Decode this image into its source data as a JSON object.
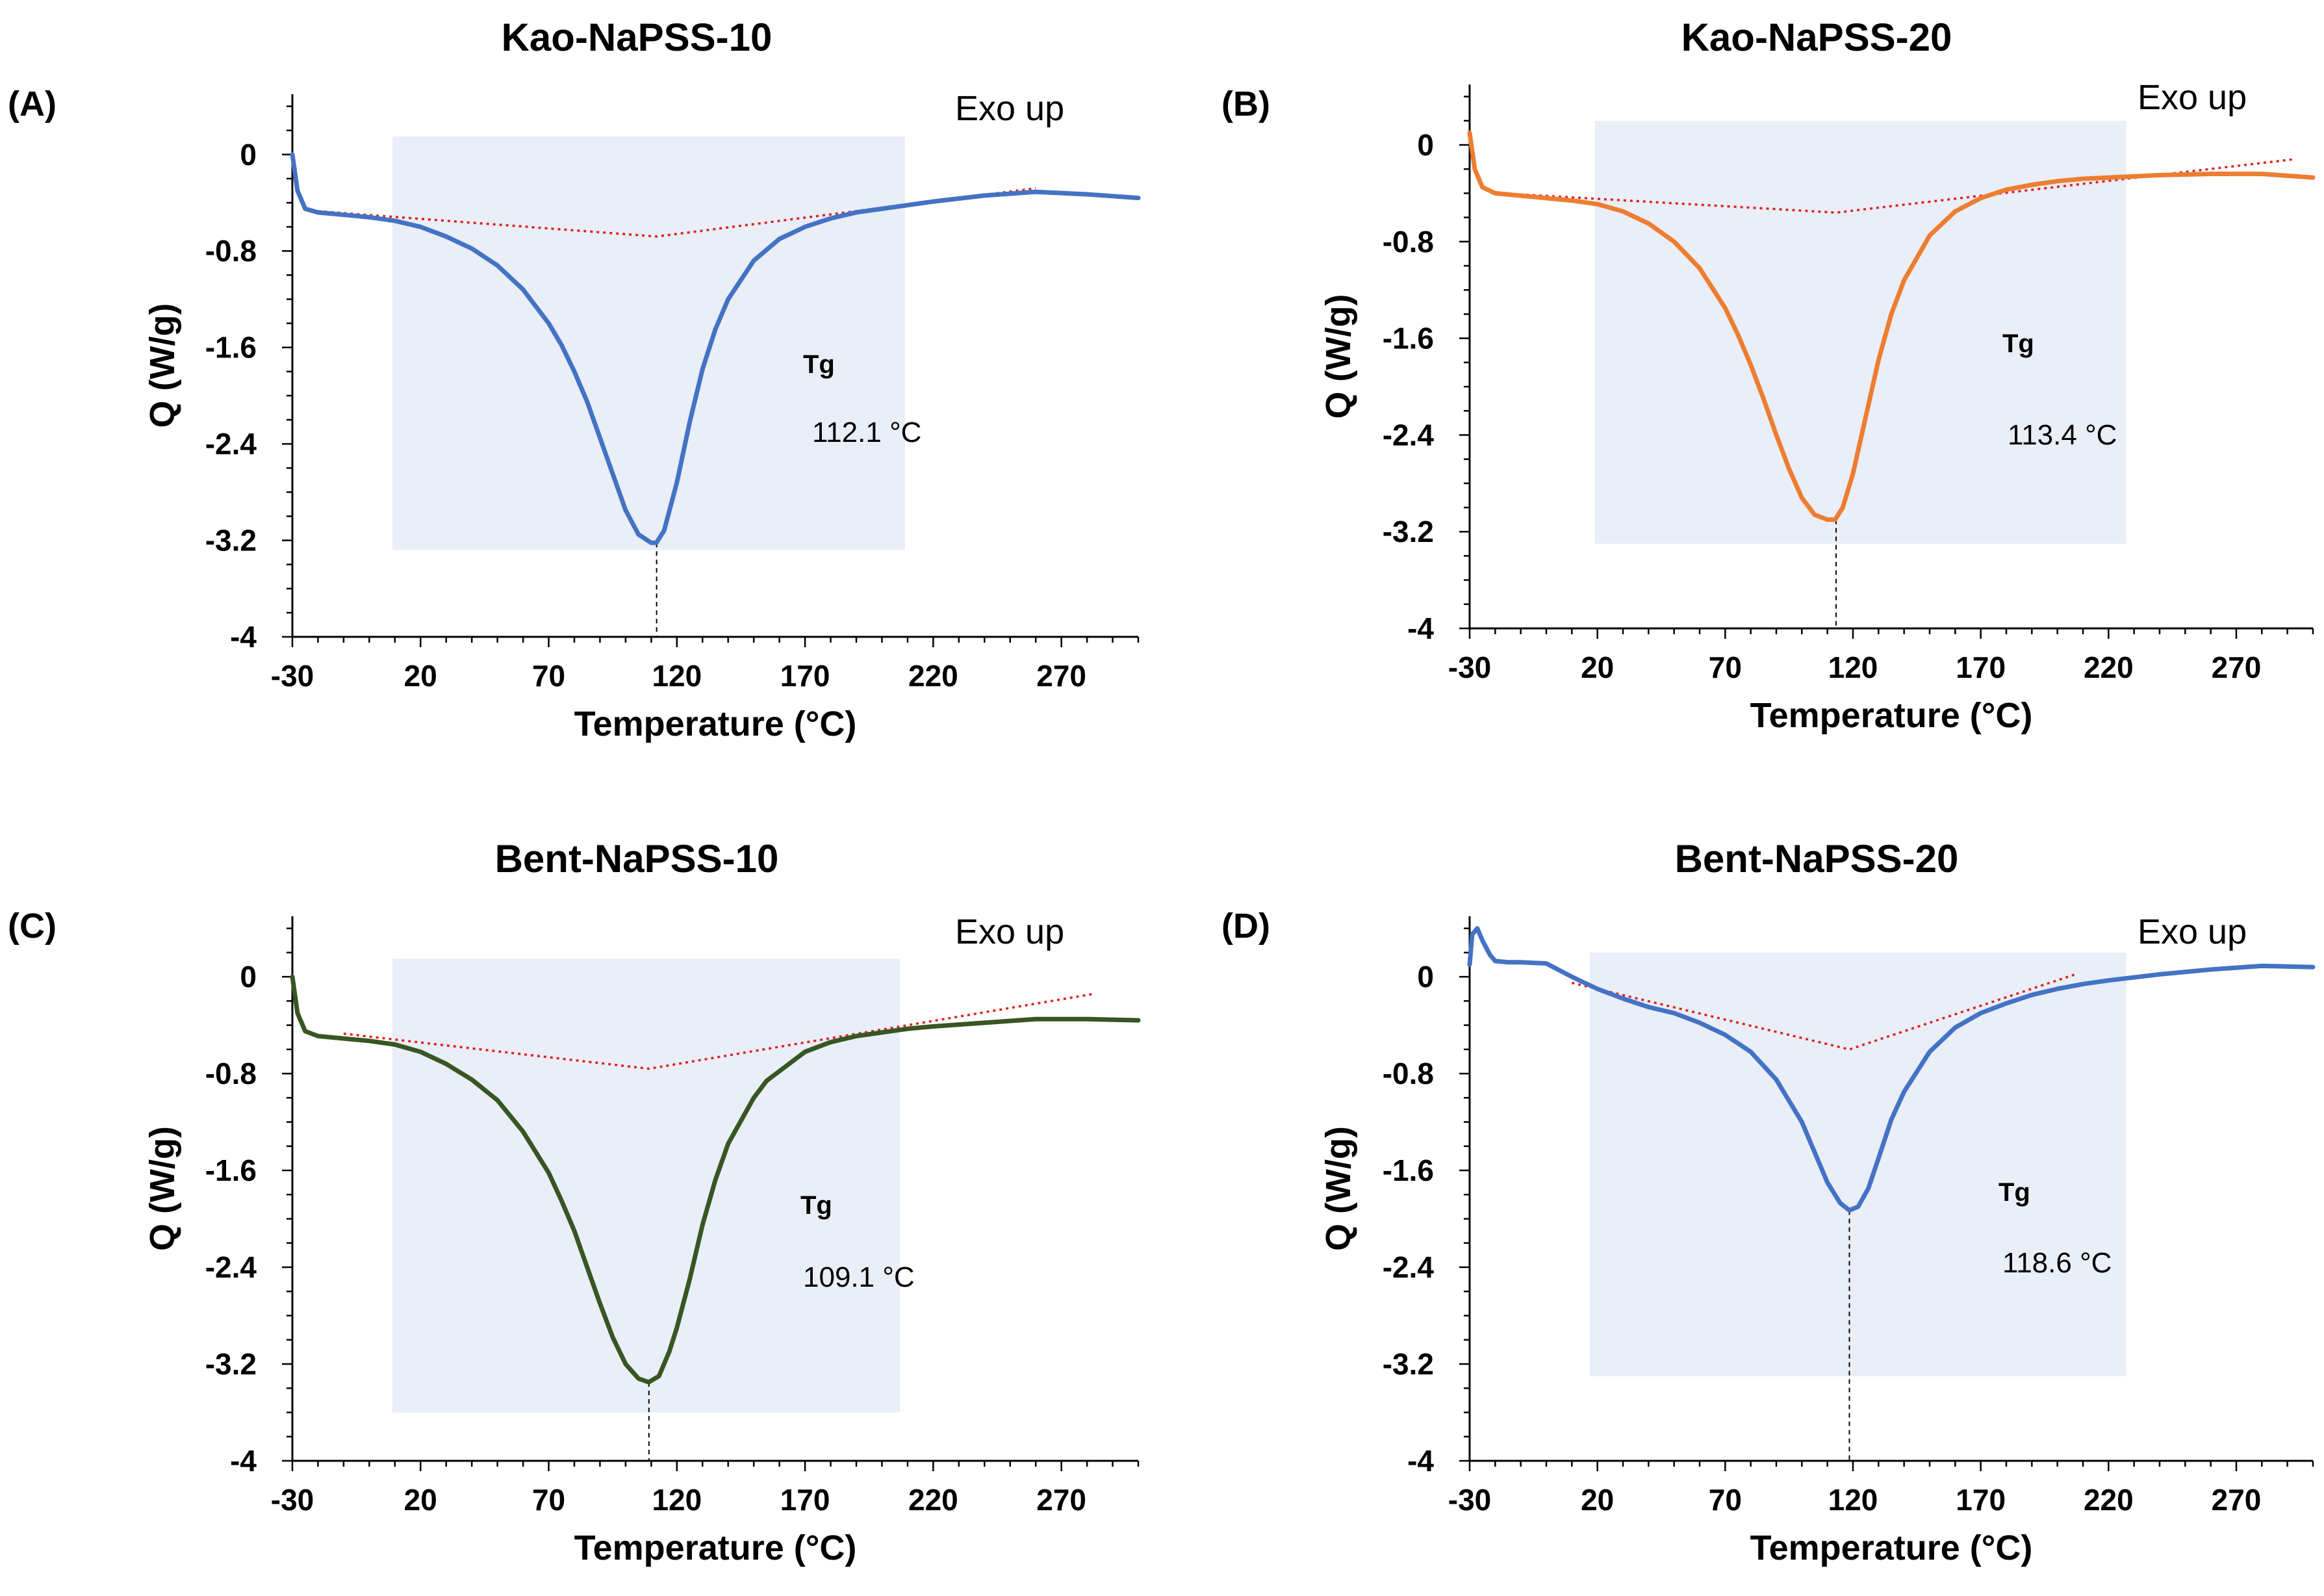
{
  "chart_data": [
    {
      "type": "line",
      "panel_label": "(A)",
      "title": "Kao-NaPSS-10",
      "xlabel": "Temperature (°C)",
      "ylabel": "Q (W/g)",
      "xlim": [
        -30,
        300
      ],
      "ylim": [
        -4,
        0.5
      ],
      "xticks": [
        "-30",
        "20",
        "70",
        "120",
        "170",
        "220",
        "270"
      ],
      "yticks": [
        "0",
        "-0.8",
        "-1.6",
        "-2.4",
        "-3.2",
        "-4"
      ],
      "annotation_exo": "Exo up",
      "tg_label": "Tg",
      "tg_value": "112.1 °C",
      "tg_x": 112.1,
      "peak_q": -3.22,
      "shade": {
        "x": [
          9,
          209
        ],
        "y": [
          -3.28,
          0.15
        ]
      },
      "baseline": {
        "x": [
          -20,
          112.1,
          260
        ],
        "y": [
          -0.47,
          -0.68,
          -0.28
        ]
      },
      "grid": false,
      "series": [
        {
          "color": "#4472C4",
          "x": [
            -30,
            -28,
            -25,
            -20,
            -10,
            0,
            10,
            20,
            30,
            40,
            50,
            60,
            70,
            75,
            80,
            85,
            90,
            95,
            100,
            105,
            110,
            112,
            115,
            120,
            125,
            130,
            135,
            140,
            150,
            160,
            170,
            180,
            190,
            200,
            210,
            220,
            240,
            260,
            280,
            300
          ],
          "y": [
            0,
            -0.3,
            -0.45,
            -0.48,
            -0.5,
            -0.52,
            -0.55,
            -0.6,
            -0.68,
            -0.78,
            -0.92,
            -1.12,
            -1.4,
            -1.58,
            -1.8,
            -2.05,
            -2.35,
            -2.65,
            -2.95,
            -3.15,
            -3.22,
            -3.22,
            -3.12,
            -2.72,
            -2.22,
            -1.78,
            -1.45,
            -1.2,
            -0.88,
            -0.7,
            -0.6,
            -0.53,
            -0.48,
            -0.45,
            -0.42,
            -0.39,
            -0.34,
            -0.31,
            -0.33,
            -0.36
          ]
        }
      ]
    },
    {
      "type": "line",
      "panel_label": "(B)",
      "title": "Kao-NaPSS-20",
      "xlabel": "Temperature (°C)",
      "ylabel": "Q (W/g)",
      "xlim": [
        -30,
        300
      ],
      "ylim": [
        -4,
        0.5
      ],
      "xticks": [
        "-30",
        "20",
        "70",
        "120",
        "170",
        "220",
        "270"
      ],
      "yticks": [
        "0",
        "-0.8",
        "-1.6",
        "-2.4",
        "-3.2",
        "-4"
      ],
      "annotation_exo": "Exo up",
      "tg_label": "Tg",
      "tg_value": "113.4 °C",
      "tg_x": 113.4,
      "peak_q": -3.1,
      "shade": {
        "x": [
          19,
          227
        ],
        "y": [
          -3.3,
          0.2
        ]
      },
      "baseline": {
        "x": [
          -18,
          113.4,
          292
        ],
        "y": [
          -0.4,
          -0.56,
          -0.12
        ]
      },
      "grid": false,
      "series": [
        {
          "color": "#ED7D31",
          "x": [
            -30,
            -28,
            -25,
            -20,
            -10,
            0,
            10,
            20,
            30,
            40,
            50,
            60,
            70,
            75,
            80,
            85,
            90,
            95,
            100,
            105,
            110,
            113,
            116,
            120,
            125,
            130,
            135,
            140,
            150,
            160,
            170,
            180,
            190,
            200,
            210,
            220,
            240,
            260,
            280,
            300
          ],
          "y": [
            0.1,
            -0.2,
            -0.35,
            -0.4,
            -0.42,
            -0.44,
            -0.46,
            -0.49,
            -0.55,
            -0.65,
            -0.8,
            -1.02,
            -1.35,
            -1.57,
            -1.82,
            -2.1,
            -2.4,
            -2.68,
            -2.92,
            -3.06,
            -3.1,
            -3.1,
            -3.0,
            -2.72,
            -2.25,
            -1.78,
            -1.4,
            -1.12,
            -0.75,
            -0.55,
            -0.44,
            -0.37,
            -0.33,
            -0.3,
            -0.28,
            -0.27,
            -0.25,
            -0.24,
            -0.24,
            -0.27
          ]
        }
      ]
    },
    {
      "type": "line",
      "panel_label": "(C)",
      "title": "Bent-NaPSS-10",
      "xlabel": "Temperature (°C)",
      "ylabel": "Q (W/g)",
      "xlim": [
        -30,
        300
      ],
      "ylim": [
        -4,
        0.5
      ],
      "xticks": [
        "-30",
        "20",
        "70",
        "120",
        "170",
        "220",
        "270"
      ],
      "yticks": [
        "0",
        "-0.8",
        "-1.6",
        "-2.4",
        "-3.2",
        "-4"
      ],
      "annotation_exo": "Exo up",
      "tg_label": "Tg",
      "tg_value": "109.1 °C",
      "tg_x": 109.1,
      "peak_q": -3.35,
      "shade": {
        "x": [
          9,
          207
        ],
        "y": [
          -3.6,
          0.15
        ]
      },
      "baseline": {
        "x": [
          -10,
          109.1,
          283
        ],
        "y": [
          -0.47,
          -0.76,
          -0.14
        ]
      },
      "grid": false,
      "series": [
        {
          "color": "#375623",
          "x": [
            -30,
            -28,
            -25,
            -20,
            -10,
            0,
            10,
            20,
            30,
            40,
            50,
            60,
            70,
            75,
            80,
            85,
            90,
            95,
            100,
            105,
            109,
            113,
            117,
            120,
            125,
            130,
            135,
            140,
            150,
            155,
            160,
            170,
            180,
            190,
            200,
            210,
            220,
            240,
            260,
            280,
            300
          ],
          "y": [
            0,
            -0.3,
            -0.45,
            -0.49,
            -0.51,
            -0.53,
            -0.56,
            -0.62,
            -0.72,
            -0.85,
            -1.02,
            -1.28,
            -1.62,
            -1.85,
            -2.1,
            -2.4,
            -2.7,
            -2.98,
            -3.2,
            -3.32,
            -3.35,
            -3.3,
            -3.1,
            -2.9,
            -2.5,
            -2.05,
            -1.68,
            -1.38,
            -1.0,
            -0.86,
            -0.78,
            -0.62,
            -0.54,
            -0.49,
            -0.46,
            -0.43,
            -0.41,
            -0.38,
            -0.35,
            -0.35,
            -0.36
          ]
        }
      ]
    },
    {
      "type": "line",
      "panel_label": "(D)",
      "title": "Bent-NaPSS-20",
      "xlabel": "Temperature (°C)",
      "ylabel": "Q (W/g)",
      "xlim": [
        -30,
        300
      ],
      "ylim": [
        -4,
        0.5
      ],
      "xticks": [
        "-30",
        "20",
        "70",
        "120",
        "170",
        "220",
        "270"
      ],
      "yticks": [
        "0",
        "-0.8",
        "-1.6",
        "-2.4",
        "-3.2",
        "-4"
      ],
      "annotation_exo": "Exo up",
      "tg_label": "Tg",
      "tg_value": "118.6 °C",
      "tg_x": 118.6,
      "peak_q": -1.93,
      "shade": {
        "x": [
          17,
          227
        ],
        "y": [
          -3.3,
          0.2
        ]
      },
      "baseline": {
        "x": [
          10,
          118.6,
          207
        ],
        "y": [
          -0.05,
          -0.6,
          0.02
        ]
      },
      "grid": false,
      "series": [
        {
          "color": "#4472C4",
          "x": [
            -30,
            -29,
            -27,
            -25,
            -22,
            -20,
            -15,
            -10,
            0,
            10,
            20,
            30,
            40,
            50,
            60,
            70,
            80,
            90,
            100,
            105,
            110,
            115,
            118.6,
            122,
            126,
            130,
            135,
            140,
            150,
            160,
            170,
            180,
            190,
            200,
            210,
            220,
            240,
            260,
            280,
            300
          ],
          "y": [
            0.1,
            0.35,
            0.4,
            0.3,
            0.18,
            0.13,
            0.12,
            0.12,
            0.11,
            0.0,
            -0.1,
            -0.18,
            -0.25,
            -0.3,
            -0.38,
            -0.48,
            -0.62,
            -0.85,
            -1.2,
            -1.45,
            -1.7,
            -1.87,
            -1.93,
            -1.9,
            -1.75,
            -1.5,
            -1.18,
            -0.95,
            -0.62,
            -0.42,
            -0.3,
            -0.22,
            -0.15,
            -0.1,
            -0.06,
            -0.03,
            0.02,
            0.06,
            0.09,
            0.08
          ]
        }
      ]
    }
  ]
}
